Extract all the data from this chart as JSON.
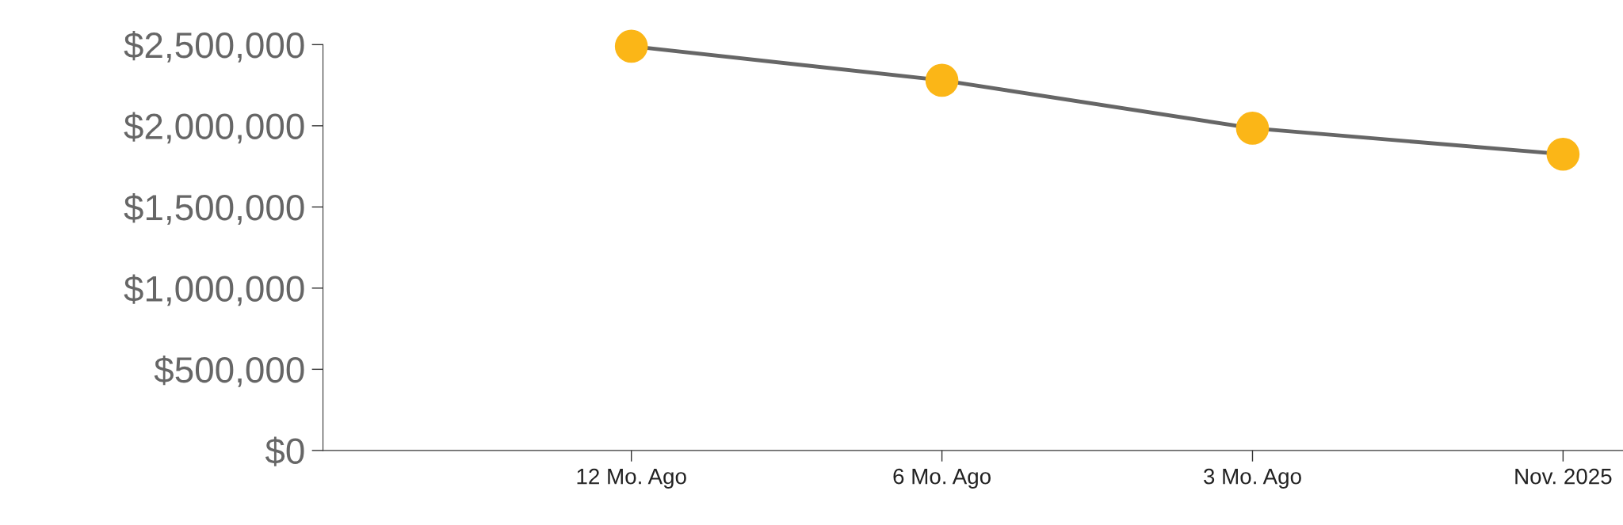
{
  "chart_data": {
    "type": "line",
    "categories": [
      "12 Mo. Ago",
      "6 Mo. Ago",
      "3 Mo. Ago",
      "Nov. 2025"
    ],
    "series": [
      {
        "color": "#666666",
        "colors": [
          "#fbb617",
          "#fbb617",
          "#fbb617",
          "#fbb617"
        ],
        "values": [
          2490000,
          2280000,
          1985000,
          1825000
        ]
      }
    ],
    "marker": "circle",
    "line_style": "solid",
    "ylim": [
      0,
      2500000
    ],
    "yticks": [
      {
        "value": 0,
        "label": "$0"
      },
      {
        "value": 500000,
        "label": "$500,000"
      },
      {
        "value": 1000000,
        "label": "$1,000,000"
      },
      {
        "value": 1500000,
        "label": "$1,500,000"
      },
      {
        "value": 2000000,
        "label": "$2,000,000"
      },
      {
        "value": 2500000,
        "label": "$2,500,000"
      }
    ],
    "grid": false
  }
}
